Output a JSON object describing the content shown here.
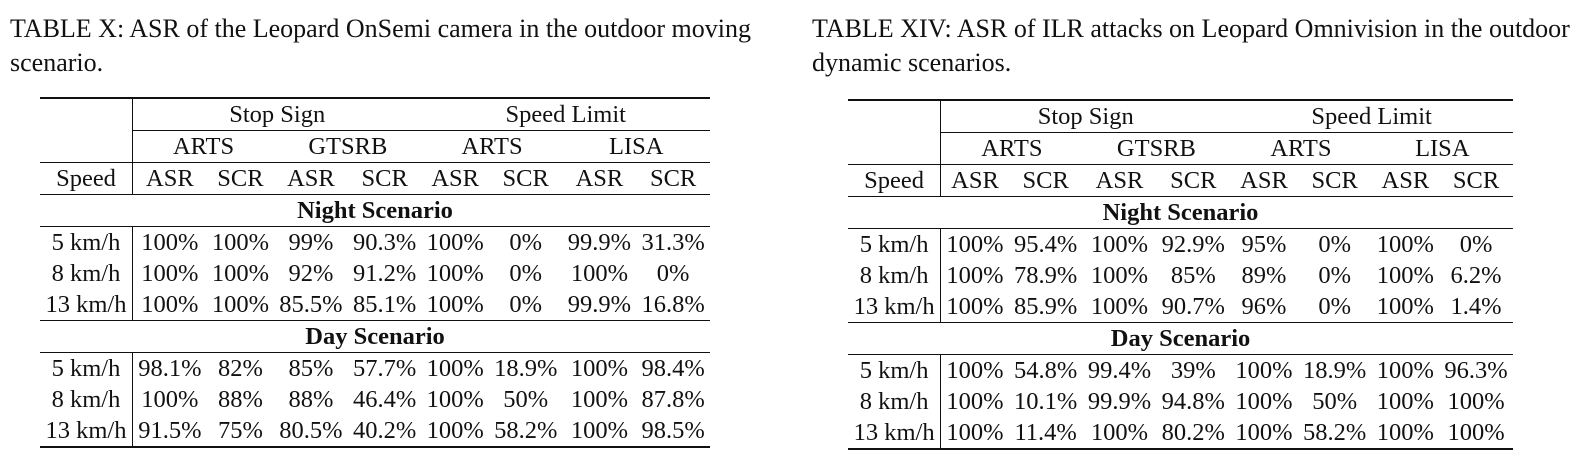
{
  "tables": [
    {
      "caption": "TABLE X: ASR of the Leopard OnSemi camera in the outdoor moving scenario.",
      "groups": [
        "Stop Sign",
        "Speed Limit"
      ],
      "datasets": [
        "ARTS",
        "GTSRB",
        "ARTS",
        "LISA"
      ],
      "speed_label": "Speed",
      "metrics": [
        "ASR",
        "SCR",
        "ASR",
        "SCR",
        "ASR",
        "SCR",
        "ASR",
        "SCR"
      ],
      "sections": [
        {
          "title": "Night Scenario",
          "rows": [
            {
              "speed": "5 km/h",
              "values": [
                "100%",
                "100%",
                "99%",
                "90.3%",
                "100%",
                "0%",
                "99.9%",
                "31.3%"
              ]
            },
            {
              "speed": "8 km/h",
              "values": [
                "100%",
                "100%",
                "92%",
                "91.2%",
                "100%",
                "0%",
                "100%",
                "0%"
              ]
            },
            {
              "speed": "13 km/h",
              "values": [
                "100%",
                "100%",
                "85.5%",
                "85.1%",
                "100%",
                "0%",
                "99.9%",
                "16.8%"
              ]
            }
          ]
        },
        {
          "title": "Day Scenario",
          "rows": [
            {
              "speed": "5 km/h",
              "values": [
                "98.1%",
                "82%",
                "85%",
                "57.7%",
                "100%",
                "18.9%",
                "100%",
                "98.4%"
              ]
            },
            {
              "speed": "8 km/h",
              "values": [
                "100%",
                "88%",
                "88%",
                "46.4%",
                "100%",
                "50%",
                "100%",
                "87.8%"
              ]
            },
            {
              "speed": "13 km/h",
              "values": [
                "91.5%",
                "75%",
                "80.5%",
                "40.2%",
                "100%",
                "58.2%",
                "100%",
                "98.5%"
              ]
            }
          ]
        }
      ]
    },
    {
      "caption": "TABLE XIV: ASR of ILR attacks on Leopard Omnivision in the outdoor dynamic scenarios.",
      "groups": [
        "Stop Sign",
        "Speed Limit"
      ],
      "datasets": [
        "ARTS",
        "GTSRB",
        "ARTS",
        "LISA"
      ],
      "speed_label": "Speed",
      "metrics": [
        "ASR",
        "SCR",
        "ASR",
        "SCR",
        "ASR",
        "SCR",
        "ASR",
        "SCR"
      ],
      "sections": [
        {
          "title": "Night Scenario",
          "rows": [
            {
              "speed": "5 km/h",
              "values": [
                "100%",
                "95.4%",
                "100%",
                "92.9%",
                "95%",
                "0%",
                "100%",
                "0%"
              ]
            },
            {
              "speed": "8 km/h",
              "values": [
                "100%",
                "78.9%",
                "100%",
                "85%",
                "89%",
                "0%",
                "100%",
                "6.2%"
              ]
            },
            {
              "speed": "13 km/h",
              "values": [
                "100%",
                "85.9%",
                "100%",
                "90.7%",
                "96%",
                "0%",
                "100%",
                "1.4%"
              ]
            }
          ]
        },
        {
          "title": "Day Scenario",
          "rows": [
            {
              "speed": "5 km/h",
              "values": [
                "100%",
                "54.8%",
                "99.4%",
                "39%",
                "100%",
                "18.9%",
                "100%",
                "96.3%"
              ]
            },
            {
              "speed": "8 km/h",
              "values": [
                "100%",
                "10.1%",
                "99.9%",
                "94.8%",
                "100%",
                "50%",
                "100%",
                "100%"
              ]
            },
            {
              "speed": "13 km/h",
              "values": [
                "100%",
                "11.4%",
                "100%",
                "80.2%",
                "100%",
                "58.2%",
                "100%",
                "100%"
              ]
            }
          ]
        }
      ]
    }
  ]
}
